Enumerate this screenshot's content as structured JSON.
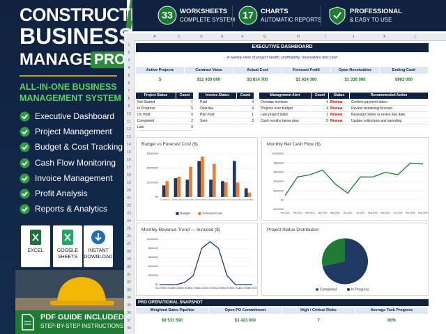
{
  "left_panel": {
    "title": [
      "CONSTRUCTION",
      "BUSINESS",
      "MANAGER"
    ],
    "badge": "PRO",
    "subtitle": [
      "ALL-IN-ONE BUSINESS",
      "MANAGEMENT SYSTEM"
    ],
    "features": [
      "Executive Dashboard",
      "Project Management",
      "Budget & Cost Tracking",
      "Cash Flow Monitoring",
      "Invoice Management",
      "Profit Analysis",
      "Reports & Analytics"
    ],
    "formats": [
      [
        "EXCEL"
      ],
      [
        "GOOGLE",
        "SHEETS"
      ],
      [
        "INSTANT",
        "DOWNLOAD"
      ]
    ],
    "pdf": {
      "title": "PDF GUIDE INCLUDED",
      "subtitle": "STEP-BY-STEP INSTRUCTIONS"
    }
  },
  "top_bar": [
    {
      "number": "33",
      "title": "WORKSHEETS",
      "subtitle": "COMPLETE SYSTEM"
    },
    {
      "number": "17",
      "title": "CHARTS",
      "subtitle": "AUTOMATIC REPORTS"
    },
    {
      "title": "PROFESSIONAL",
      "subtitle": "& EASY TO USE"
    }
  ],
  "sheet": {
    "columns": [
      "A",
      "C",
      "D",
      "E",
      "F",
      "G",
      "H",
      "I",
      "J",
      "K",
      "L"
    ],
    "rows": [
      "1",
      "2",
      "3",
      "4",
      "5",
      "6",
      "7",
      "8",
      "9",
      "10",
      "11",
      "12",
      "13",
      "14",
      "15",
      "16",
      "17",
      "18",
      "19",
      "20",
      "21",
      "22",
      "23",
      "24",
      "25",
      "26",
      "27",
      "28",
      "29",
      "30",
      "31",
      "32",
      "33",
      "34",
      "35",
      "36",
      "37",
      "38"
    ]
  },
  "dashboard": {
    "title": "EXECUTIVE DASHBOARD",
    "subtitle": "A weekly view of project health, profitability, receivables and cash",
    "kpis": [
      {
        "label": "Active Projects",
        "value": "5"
      },
      {
        "label": "Contract Value",
        "value": "$11 430 000"
      },
      {
        "label": "Actual Cost",
        "value": "$3 814 700"
      },
      {
        "label": "Forecast Profit",
        "value": "$1 624 300"
      },
      {
        "label": "Open Receivables",
        "value": "$1 336 000"
      },
      {
        "label": "Ending Cash",
        "value": "$902 000"
      }
    ],
    "project_status": {
      "headers": [
        "Project Status",
        "Count"
      ],
      "rows": [
        [
          "Not Started",
          "1"
        ],
        [
          "In Progress",
          "5"
        ],
        [
          "On Hold",
          "0"
        ],
        [
          "Completed",
          "2"
        ],
        [
          "Late",
          "0"
        ]
      ]
    },
    "invoice_status": {
      "headers": [
        "Invoice Status",
        "Count"
      ],
      "rows": [
        [
          "Paid",
          "4"
        ],
        [
          "Overdue",
          "4"
        ],
        [
          "Part Paid",
          "1"
        ],
        [
          "Sent",
          "3"
        ]
      ]
    },
    "alerts": {
      "headers": [
        "Management Alert",
        "Count",
        "Status",
        "Recommended Action"
      ],
      "rows": [
        [
          "Overdue invoices",
          "4",
          "Review",
          "Confirm payment dates"
        ],
        [
          "Projects over budget",
          "4",
          "Review",
          "Review remaining forecast"
        ],
        [
          "Late project tasks",
          "1",
          "Review",
          "Reassign owner or revise due date"
        ],
        [
          "Cash months below plan",
          "5",
          "Review",
          "Update collections and spending"
        ]
      ]
    },
    "snapshot": {
      "title": "PRO OPERATIONAL SNAPSHOT",
      "headers": [
        "Weighted Sales Pipeline",
        "Open PO Commitment",
        "High / Critical Risks",
        "Average Task Progress"
      ],
      "values": [
        "$9 531 500",
        "$1 423 000",
        "7",
        "60%"
      ]
    }
  },
  "charts": [
    {
      "type": "bar",
      "title": "Budget vs Forecast Cost ($)",
      "categories": [
        "Greenfield Office Bu...",
        "Oak Street Retail",
        "Eastside Fitness Phase 1",
        "Northview Medical",
        "Lakeside Warehouse Expansion",
        "Maplefield Renovation",
        "Riverside Hotel Addition",
        "Brookside Offices"
      ],
      "series": [
        {
          "name": "Budget",
          "color": "#1f3864",
          "values": [
            800000,
            1300000,
            1200000,
            2500000,
            1200000,
            1100000,
            2500000,
            600000
          ]
        },
        {
          "name": "Forecast Cost",
          "color": "#ed7d31",
          "values": [
            1100000,
            1400000,
            2100000,
            2800000,
            2300000,
            1000000,
            1000000,
            300000
          ]
        }
      ],
      "ylim": [
        0,
        3000000
      ],
      "yticks": [
        {
          "value": 0,
          "label": "$0"
        },
        {
          "value": 1000000,
          "label": "$1000000"
        },
        {
          "value": 2000000,
          "label": "$2000000"
        },
        {
          "value": 3000000,
          "label": "$3000000"
        }
      ],
      "grid": true
    },
    {
      "type": "line",
      "title": "Monthly Net Cash Flow ($)",
      "categories": [
        "Jan 2024",
        "Feb 2024",
        "Mar 2024",
        "Apr 2024",
        "May 2024",
        "Jun 2024",
        "Jul 2024",
        "Aug 2024",
        "Sep 2024",
        "Oct 2024",
        "Nov 2024",
        "Dec 2024"
      ],
      "series": [
        {
          "name": "Net Cash Flow",
          "color": "#1e7b34",
          "values": [
            100000,
            500000,
            550000,
            650000,
            350000,
            150000,
            500000,
            500000,
            600000,
            550000,
            800000,
            780000
          ]
        }
      ],
      "ylim": [
        -200000,
        1000000
      ],
      "yticks": [
        {
          "value": -200000,
          "label": "-$200000"
        },
        {
          "value": 0,
          "label": "$0"
        },
        {
          "value": 200000,
          "label": "$200000"
        },
        {
          "value": 400000,
          "label": "$400000"
        },
        {
          "value": 600000,
          "label": "$600000"
        },
        {
          "value": 800000,
          "label": "$800000"
        },
        {
          "value": 1000000,
          "label": "$1000000"
        }
      ],
      "grid": true
    },
    {
      "type": "line",
      "title": "Monthly Revenue Trend — Invoiced ($)",
      "categories": [
        "Jan 2024",
        "Feb 2024",
        "Mar 2024",
        "Apr 2024",
        "May 2024",
        "Jun 2024",
        "Jul 2024",
        "Aug 2024",
        "Sep 2024",
        "Oct 2024",
        "Nov 2024",
        "Dec 2024"
      ],
      "series": [
        {
          "name": "Invoiced",
          "color": "#1f3a70",
          "values": [
            0,
            0,
            0,
            50000,
            200000,
            800000,
            950000,
            800000,
            200000,
            0,
            0,
            0
          ]
        }
      ],
      "ylim": [
        0,
        1000000
      ],
      "yticks": [
        {
          "value": 0,
          "label": "$0"
        },
        {
          "value": 200000,
          "label": "$200000"
        },
        {
          "value": 400000,
          "label": "$400000"
        },
        {
          "value": 600000,
          "label": "$600000"
        },
        {
          "value": 800000,
          "label": "$800000"
        },
        {
          "value": 1000000,
          "label": "$1000000"
        }
      ],
      "grid": true
    },
    {
      "type": "pie",
      "title": "Project Status Distribution",
      "categories": [
        "Completed",
        "In Progress"
      ],
      "values": [
        2,
        5
      ],
      "colors": [
        "#1e7b34",
        "#1f3864"
      ]
    }
  ]
}
